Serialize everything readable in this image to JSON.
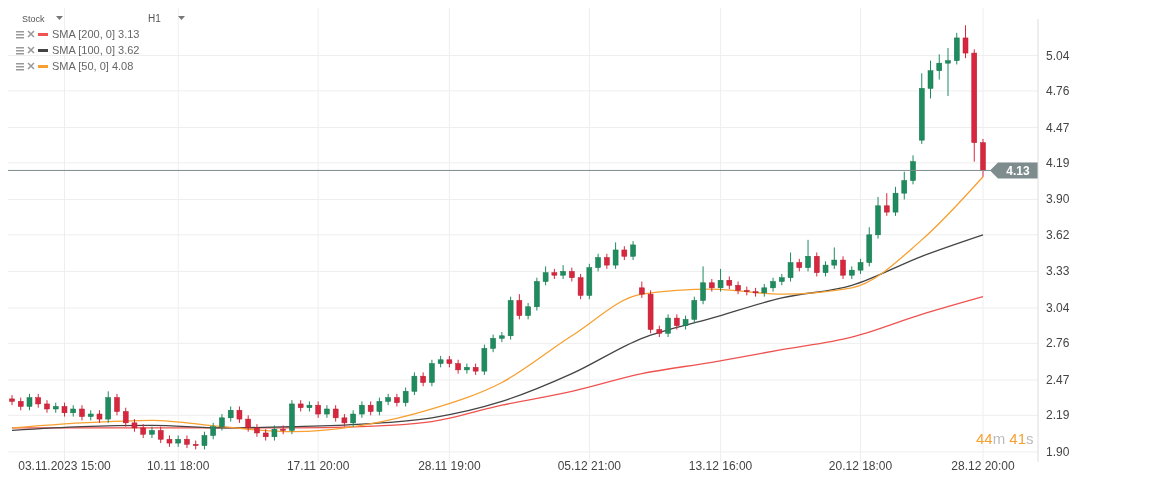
{
  "chart_data": {
    "type": "candlestick",
    "annotations": [
      "Stock",
      "H1",
      "44m 41s"
    ],
    "categories": [
      null,
      null,
      null,
      null,
      null,
      null,
      "03.11.2023 15:00",
      null,
      null,
      null,
      null,
      null,
      null,
      null,
      null,
      null,
      null,
      null,
      null,
      "10.11 18:00",
      null,
      null,
      null,
      null,
      null,
      null,
      null,
      null,
      null,
      null,
      null,
      null,
      null,
      null,
      null,
      "17.11 20:00",
      null,
      null,
      null,
      null,
      null,
      null,
      null,
      null,
      null,
      null,
      null,
      null,
      null,
      null,
      "28.11 19:00",
      null,
      null,
      null,
      null,
      null,
      null,
      null,
      null,
      null,
      null,
      null,
      null,
      null,
      null,
      null,
      "05.12 21:00",
      null,
      null,
      null,
      null,
      null,
      null,
      null,
      null,
      null,
      null,
      null,
      null,
      null,
      null,
      "13.12 16:00",
      null,
      null,
      null,
      null,
      null,
      null,
      null,
      null,
      null,
      null,
      null,
      null,
      null,
      null,
      null,
      "20.12 18:00",
      null,
      null,
      null,
      null,
      null,
      null,
      null,
      null,
      null,
      null,
      null,
      null,
      null,
      "28.12 20:00"
    ],
    "ohlc": [
      [
        2.32,
        2.35,
        2.27,
        2.3
      ],
      [
        2.3,
        2.33,
        2.23,
        2.26
      ],
      [
        2.26,
        2.36,
        2.23,
        2.33
      ],
      [
        2.33,
        2.36,
        2.25,
        2.28
      ],
      [
        2.28,
        2.31,
        2.21,
        2.24
      ],
      [
        2.24,
        2.29,
        2.21,
        2.26
      ],
      [
        2.26,
        2.29,
        2.18,
        2.21
      ],
      [
        2.21,
        2.27,
        2.18,
        2.24
      ],
      [
        2.24,
        2.27,
        2.15,
        2.18
      ],
      [
        2.18,
        2.23,
        2.15,
        2.2
      ],
      [
        2.2,
        2.23,
        2.13,
        2.16
      ],
      [
        2.16,
        2.38,
        2.13,
        2.33
      ],
      [
        2.33,
        2.36,
        2.19,
        2.22
      ],
      [
        2.22,
        2.25,
        2.1,
        2.13
      ],
      [
        2.13,
        2.16,
        2.06,
        2.09
      ],
      [
        2.09,
        2.12,
        2.01,
        2.04
      ],
      [
        2.04,
        2.1,
        2.01,
        2.07
      ],
      [
        2.07,
        2.1,
        1.97,
        2.0
      ],
      [
        2.0,
        2.03,
        1.94,
        1.97
      ],
      [
        1.97,
        2.03,
        1.94,
        2.0
      ],
      [
        2.0,
        2.03,
        1.93,
        1.96
      ],
      [
        1.96,
        1.99,
        1.92,
        1.95
      ],
      [
        1.95,
        2.06,
        1.92,
        2.03
      ],
      [
        2.03,
        2.13,
        2.0,
        2.1
      ],
      [
        2.1,
        2.2,
        2.07,
        2.17
      ],
      [
        2.17,
        2.26,
        2.14,
        2.23
      ],
      [
        2.23,
        2.26,
        2.13,
        2.16
      ],
      [
        2.16,
        2.19,
        2.06,
        2.09
      ],
      [
        2.09,
        2.12,
        2.02,
        2.05
      ],
      [
        2.05,
        2.08,
        1.99,
        2.02
      ],
      [
        2.02,
        2.11,
        1.99,
        2.08
      ],
      [
        2.08,
        2.11,
        2.04,
        2.07
      ],
      [
        2.07,
        2.31,
        2.04,
        2.28
      ],
      [
        2.28,
        2.31,
        2.22,
        2.25
      ],
      [
        2.25,
        2.3,
        2.22,
        2.27
      ],
      [
        2.27,
        2.3,
        2.17,
        2.2
      ],
      [
        2.2,
        2.27,
        2.17,
        2.24
      ],
      [
        2.24,
        2.27,
        2.14,
        2.17
      ],
      [
        2.17,
        2.2,
        2.1,
        2.13
      ],
      [
        2.13,
        2.23,
        2.1,
        2.2
      ],
      [
        2.2,
        2.3,
        2.17,
        2.27
      ],
      [
        2.27,
        2.3,
        2.19,
        2.22
      ],
      [
        2.22,
        2.33,
        2.19,
        2.3
      ],
      [
        2.3,
        2.36,
        2.27,
        2.33
      ],
      [
        2.33,
        2.36,
        2.26,
        2.29
      ],
      [
        2.29,
        2.41,
        2.26,
        2.38
      ],
      [
        2.38,
        2.53,
        2.35,
        2.5
      ],
      [
        2.5,
        2.53,
        2.42,
        2.45
      ],
      [
        2.45,
        2.63,
        2.42,
        2.6
      ],
      [
        2.6,
        2.66,
        2.57,
        2.63
      ],
      [
        2.63,
        2.66,
        2.57,
        2.6
      ],
      [
        2.6,
        2.63,
        2.52,
        2.55
      ],
      [
        2.55,
        2.6,
        2.52,
        2.57
      ],
      [
        2.57,
        2.6,
        2.51,
        2.54
      ],
      [
        2.54,
        2.75,
        2.51,
        2.72
      ],
      [
        2.72,
        2.83,
        2.69,
        2.8
      ],
      [
        2.8,
        2.85,
        2.77,
        2.82
      ],
      [
        2.82,
        3.13,
        2.79,
        3.1
      ],
      [
        3.1,
        3.15,
        2.95,
        2.98
      ],
      [
        2.98,
        3.08,
        2.95,
        3.05
      ],
      [
        3.05,
        3.28,
        3.02,
        3.25
      ],
      [
        3.25,
        3.37,
        3.22,
        3.32
      ],
      [
        3.32,
        3.35,
        3.27,
        3.3
      ],
      [
        3.3,
        3.38,
        3.27,
        3.33
      ],
      [
        3.33,
        3.36,
        3.25,
        3.28
      ],
      [
        3.28,
        3.31,
        3.11,
        3.14
      ],
      [
        3.14,
        3.39,
        3.11,
        3.36
      ],
      [
        3.36,
        3.47,
        3.33,
        3.44
      ],
      [
        3.44,
        3.47,
        3.35,
        3.38
      ],
      [
        3.38,
        3.56,
        3.35,
        3.5
      ],
      [
        3.5,
        3.53,
        3.42,
        3.45
      ],
      [
        3.45,
        3.57,
        3.42,
        3.54
      ],
      [
        3.2,
        3.25,
        3.12,
        3.15
      ],
      [
        3.15,
        3.18,
        2.84,
        2.87
      ],
      [
        2.87,
        2.9,
        2.81,
        2.84
      ],
      [
        2.84,
        2.99,
        2.81,
        2.96
      ],
      [
        2.96,
        2.99,
        2.87,
        2.9
      ],
      [
        2.9,
        2.98,
        2.87,
        2.95
      ],
      [
        2.95,
        3.13,
        2.92,
        3.1
      ],
      [
        3.1,
        3.37,
        3.07,
        3.24
      ],
      [
        3.24,
        3.27,
        3.17,
        3.2
      ],
      [
        3.2,
        3.35,
        3.17,
        3.26
      ],
      [
        3.26,
        3.29,
        3.19,
        3.22
      ],
      [
        3.22,
        3.25,
        3.15,
        3.18
      ],
      [
        3.18,
        3.21,
        3.14,
        3.17
      ],
      [
        3.17,
        3.2,
        3.13,
        3.16
      ],
      [
        3.16,
        3.23,
        3.13,
        3.2
      ],
      [
        3.2,
        3.28,
        3.17,
        3.25
      ],
      [
        3.25,
        3.31,
        3.22,
        3.28
      ],
      [
        3.28,
        3.48,
        3.25,
        3.4
      ],
      [
        3.4,
        3.43,
        3.33,
        3.36
      ],
      [
        3.36,
        3.58,
        3.33,
        3.45
      ],
      [
        3.45,
        3.48,
        3.29,
        3.32
      ],
      [
        3.32,
        3.41,
        3.29,
        3.38
      ],
      [
        3.38,
        3.52,
        3.35,
        3.42
      ],
      [
        3.42,
        3.45,
        3.27,
        3.3
      ],
      [
        3.3,
        3.37,
        3.27,
        3.34
      ],
      [
        3.34,
        3.43,
        3.31,
        3.4
      ],
      [
        3.4,
        3.68,
        3.37,
        3.62
      ],
      [
        3.62,
        3.92,
        3.59,
        3.85
      ],
      [
        3.85,
        3.95,
        3.77,
        3.8
      ],
      [
        3.8,
        4.0,
        3.77,
        3.95
      ],
      [
        3.95,
        4.12,
        3.9,
        4.05
      ],
      [
        4.05,
        4.25,
        4.02,
        4.2
      ],
      [
        4.37,
        4.9,
        4.34,
        4.78
      ],
      [
        4.78,
        5.0,
        4.7,
        4.92
      ],
      [
        4.92,
        5.05,
        4.85,
        4.98
      ],
      [
        4.98,
        5.1,
        4.72,
        5.0
      ],
      [
        5.0,
        5.22,
        4.97,
        5.18
      ],
      [
        5.18,
        5.28,
        5.02,
        5.06
      ],
      [
        5.06,
        5.09,
        4.2,
        4.35
      ],
      [
        4.35,
        4.38,
        4.08,
        4.13
      ]
    ],
    "series": [
      {
        "type": "line",
        "name": "SMA [200, 0] 3.13",
        "color": "#ef5350",
        "values": [
          2.09,
          null,
          null,
          null,
          null,
          null,
          null,
          null,
          2.09,
          null,
          null,
          null,
          null,
          null,
          null,
          null,
          2.09,
          null,
          null,
          null,
          null,
          null,
          null,
          null,
          2.09,
          null,
          null,
          null,
          null,
          null,
          null,
          null,
          2.09,
          null,
          null,
          null,
          null,
          null,
          null,
          null,
          2.1,
          null,
          null,
          null,
          null,
          null,
          null,
          null,
          2.14,
          null,
          null,
          null,
          null,
          null,
          null,
          null,
          2.27,
          null,
          null,
          null,
          null,
          null,
          null,
          null,
          2.38,
          null,
          null,
          null,
          null,
          null,
          null,
          null,
          2.52,
          null,
          null,
          null,
          null,
          null,
          null,
          null,
          2.61,
          null,
          null,
          null,
          null,
          null,
          null,
          null,
          2.71,
          null,
          null,
          null,
          null,
          null,
          null,
          null,
          2.81,
          null,
          null,
          null,
          null,
          null,
          null,
          null,
          2.99,
          null,
          null,
          null,
          null,
          null,
          null,
          3.13
        ]
      },
      {
        "type": "line",
        "name": "SMA [100, 0] 3.62",
        "color": "#444444",
        "values": [
          2.07,
          null,
          null,
          null,
          null,
          null,
          null,
          null,
          2.1,
          null,
          null,
          null,
          null,
          null,
          null,
          null,
          2.11,
          null,
          null,
          null,
          null,
          null,
          null,
          null,
          2.09,
          null,
          null,
          null,
          null,
          null,
          null,
          null,
          2.1,
          null,
          null,
          null,
          null,
          null,
          null,
          null,
          2.12,
          null,
          null,
          null,
          null,
          null,
          null,
          null,
          2.17,
          null,
          null,
          null,
          null,
          null,
          null,
          null,
          2.3,
          null,
          null,
          null,
          null,
          null,
          null,
          null,
          2.52,
          null,
          null,
          null,
          null,
          null,
          null,
          null,
          2.8,
          null,
          null,
          null,
          null,
          null,
          null,
          null,
          2.96,
          null,
          null,
          null,
          null,
          null,
          null,
          null,
          3.12,
          null,
          null,
          null,
          null,
          null,
          null,
          null,
          3.22,
          null,
          null,
          null,
          null,
          null,
          null,
          null,
          3.45,
          null,
          null,
          null,
          null,
          null,
          null,
          3.62
        ]
      },
      {
        "type": "line",
        "name": "SMA [50, 0] 4.08",
        "color": "#f7a032",
        "values": [
          2.09,
          null,
          null,
          null,
          null,
          null,
          null,
          null,
          2.13,
          null,
          null,
          null,
          null,
          null,
          null,
          null,
          2.15,
          null,
          null,
          null,
          null,
          null,
          null,
          null,
          2.1,
          null,
          null,
          null,
          null,
          null,
          null,
          null,
          2.06,
          null,
          null,
          null,
          null,
          null,
          null,
          null,
          2.11,
          null,
          null,
          null,
          null,
          null,
          null,
          null,
          2.24,
          null,
          null,
          null,
          null,
          null,
          null,
          null,
          2.45,
          null,
          null,
          null,
          null,
          null,
          null,
          null,
          2.82,
          null,
          null,
          null,
          null,
          null,
          null,
          null,
          3.15,
          null,
          null,
          null,
          null,
          null,
          null,
          null,
          3.19,
          null,
          null,
          null,
          null,
          null,
          null,
          null,
          3.15,
          null,
          null,
          null,
          null,
          null,
          null,
          null,
          3.2,
          null,
          null,
          null,
          null,
          null,
          null,
          null,
          3.58,
          null,
          null,
          null,
          null,
          null,
          null,
          4.08
        ]
      }
    ],
    "ylim": [
      1.82,
      5.33
    ],
    "yticks": [
      {
        "value": 1.9,
        "label": "1.90"
      },
      {
        "value": 2.19,
        "label": "2.19"
      },
      {
        "value": 2.47,
        "label": "2.47"
      },
      {
        "value": 2.76,
        "label": "2.76"
      },
      {
        "value": 3.04,
        "label": "3.04"
      },
      {
        "value": 3.33,
        "label": "3.33"
      },
      {
        "value": 3.62,
        "label": "3.62"
      },
      {
        "value": 3.9,
        "label": "3.90"
      },
      {
        "value": 4.19,
        "label": "4.19"
      },
      {
        "value": 4.47,
        "label": "4.47"
      },
      {
        "value": 4.76,
        "label": "4.76"
      },
      {
        "value": 5.04,
        "label": "5.04"
      }
    ],
    "grid": true,
    "legend": "top left",
    "ref_lines": [
      {
        "axis": "y",
        "value": 4.13,
        "label": "4.13",
        "color": "#7f8c8d"
      }
    ]
  }
}
